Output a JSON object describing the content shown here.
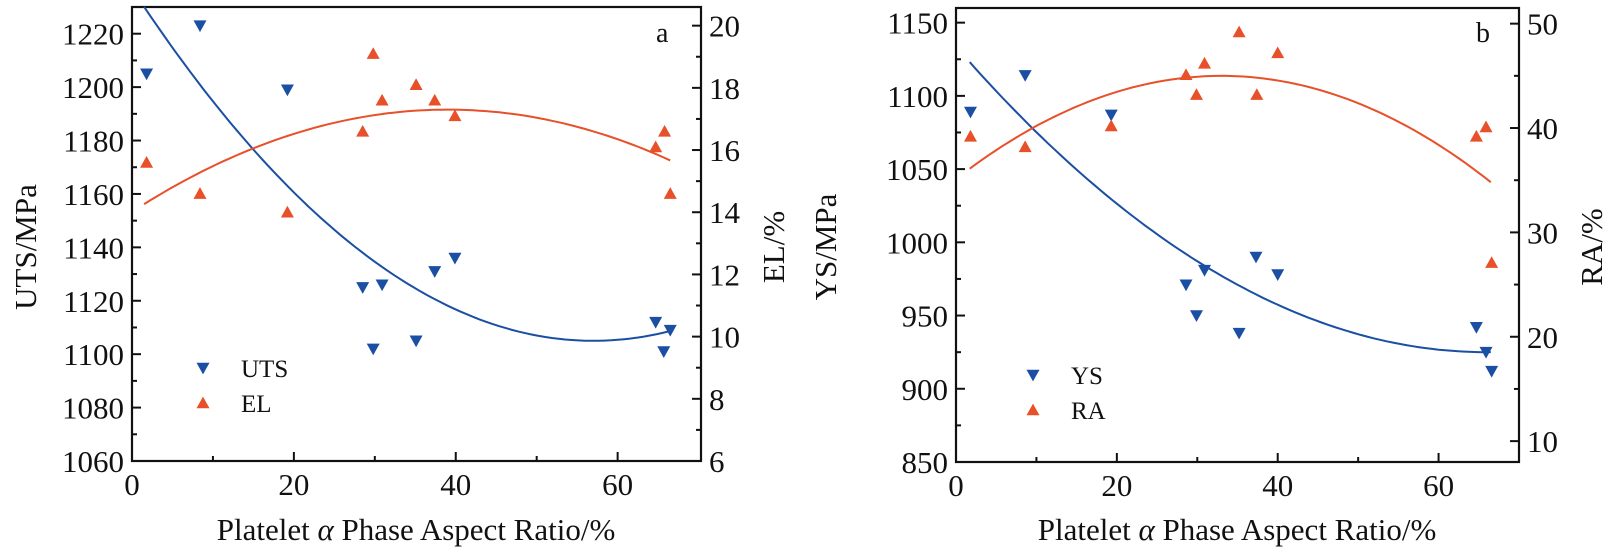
{
  "colors": {
    "series1": "#1a4fa3",
    "series2": "#e8502a",
    "axis": "#111111"
  },
  "chart_data": [
    {
      "type": "scatter",
      "panel_label": "a",
      "xlabel": "Platelet α Phase Aspect Ratio/%",
      "xlabel_prefix": "Platelet ",
      "xlabel_symbol": "α",
      "xlabel_suffix": " Phase Aspect Ratio/%",
      "ylabel": "UTS/MPa",
      "y2label": "EL/%",
      "xlim": [
        0,
        70.3
      ],
      "ylim": [
        1060,
        1230
      ],
      "y2lim": [
        6,
        20.6
      ],
      "xticks": [
        0,
        20,
        40,
        60
      ],
      "xminor": [
        10,
        30,
        50
      ],
      "yticks": [
        1060,
        1080,
        1100,
        1120,
        1140,
        1160,
        1180,
        1200,
        1220
      ],
      "yminor": [
        1070,
        1090,
        1110,
        1130,
        1150,
        1170,
        1190,
        1210
      ],
      "y2ticks": [
        6,
        8,
        10,
        12,
        14,
        16,
        18,
        20
      ],
      "y2minor": [
        7,
        9,
        11,
        13,
        15,
        17,
        19
      ],
      "legend": {
        "position": "bottom-left",
        "entries": [
          "UTS",
          "EL"
        ]
      },
      "series": [
        {
          "name": "UTS",
          "axis": "left",
          "marker": "triangle-down",
          "x": [
            1.8,
            8.4,
            19.2,
            28.5,
            30.9,
            29.8,
            35.1,
            37.4,
            39.9,
            64.7,
            66.5,
            65.7
          ],
          "y": [
            1205,
            1223,
            1199,
            1125,
            1126,
            1102,
            1105,
            1131,
            1136,
            1112,
            1109,
            1101
          ],
          "fit": {
            "type": "quadratic",
            "x_range": [
              1.5,
              66.5
            ],
            "vertex_x": 57,
            "vertex_y": 1105,
            "a": 0.0406
          }
        },
        {
          "name": "EL",
          "axis": "right",
          "marker": "triangle-up",
          "x": [
            1.8,
            8.4,
            19.2,
            28.5,
            30.9,
            29.8,
            35.1,
            37.4,
            39.9,
            64.7,
            65.8,
            66.5
          ],
          "y": [
            15.6,
            14.6,
            14.0,
            16.6,
            17.6,
            19.1,
            18.1,
            17.6,
            17.1,
            16.1,
            16.6,
            14.6
          ],
          "fit": {
            "type": "quadratic",
            "x_range": [
              1.5,
              66.5
            ],
            "vertex_x": 39,
            "vertex_y": 17.3,
            "a": -0.00216
          }
        }
      ]
    },
    {
      "type": "scatter",
      "panel_label": "b",
      "xlabel": "Platelet α Phase Aspect Ratio/%",
      "xlabel_prefix": "Platelet ",
      "xlabel_symbol": "α",
      "xlabel_suffix": " Phase Aspect Ratio/%",
      "ylabel": "YS/MPa",
      "y2label": "RA/%",
      "xlim": [
        0,
        70
      ],
      "ylim": [
        850,
        1160
      ],
      "y2lim": [
        8,
        51.5
      ],
      "xticks": [
        0,
        20,
        40,
        60
      ],
      "xminor": [
        10,
        30,
        50
      ],
      "yticks": [
        850,
        900,
        950,
        1000,
        1050,
        1100,
        1150
      ],
      "yminor": [
        875,
        925,
        975,
        1025,
        1075,
        1125
      ],
      "y2ticks": [
        10,
        20,
        30,
        40,
        50
      ],
      "y2minor": [
        15,
        25,
        35,
        45
      ],
      "legend": {
        "position": "bottom-left",
        "entries": [
          "YS",
          "RA"
        ]
      },
      "series": [
        {
          "name": "YS",
          "axis": "left",
          "marker": "triangle-down",
          "x": [
            1.8,
            8.6,
            19.3,
            28.6,
            30.9,
            29.9,
            35.2,
            37.3,
            40.0,
            64.7,
            65.9,
            66.6
          ],
          "y": [
            1089,
            1114,
            1087,
            971,
            981,
            950,
            938,
            990,
            978,
            942,
            925,
            912
          ],
          "fit": {
            "type": "quadratic",
            "x_range": [
              1.7,
              66.5
            ],
            "vertex_x": 66,
            "vertex_y": 925,
            "a": 0.0479
          }
        },
        {
          "name": "RA",
          "axis": "right",
          "marker": "triangle-up",
          "x": [
            1.8,
            8.6,
            19.3,
            28.6,
            30.9,
            29.9,
            35.2,
            37.4,
            40.0,
            64.7,
            65.9,
            66.6
          ],
          "y": [
            39.2,
            38.2,
            40.2,
            45.1,
            46.2,
            43.2,
            49.2,
            43.2,
            47.2,
            39.2,
            40.1,
            27.1
          ],
          "fit": {
            "type": "quadratic",
            "x_range": [
              1.7,
              66.5
            ],
            "vertex_x": 33,
            "vertex_y": 45.0,
            "a": -0.00908
          }
        }
      ]
    }
  ]
}
